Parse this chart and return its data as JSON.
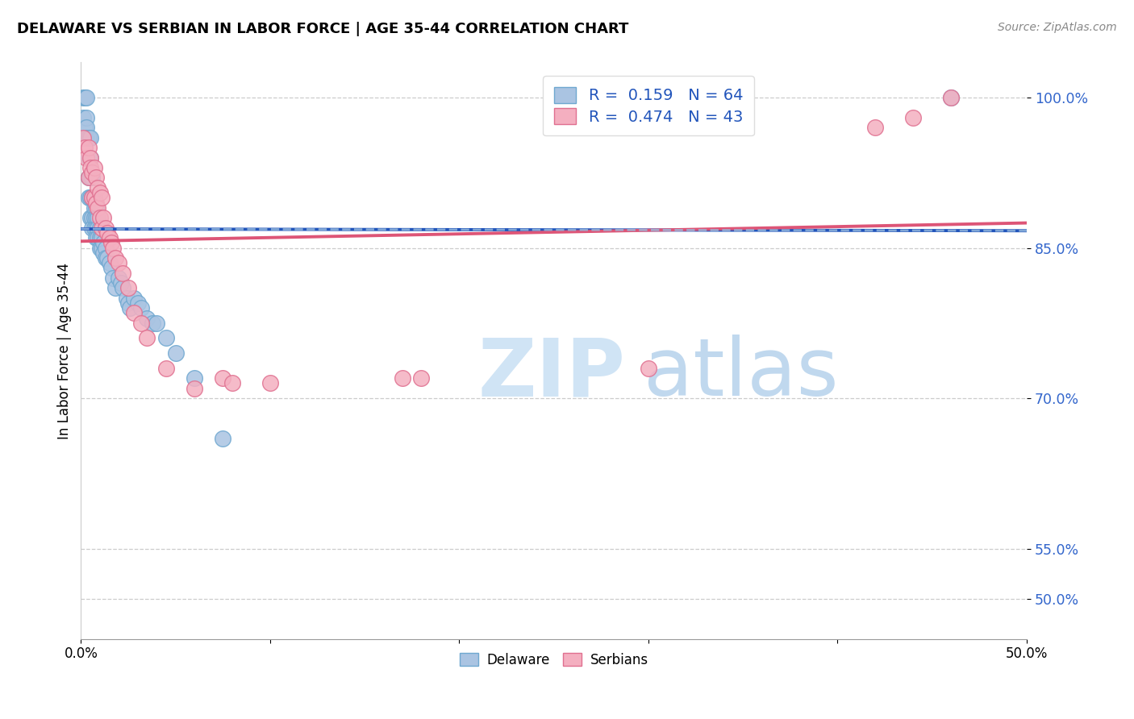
{
  "title": "DELAWARE VS SERBIAN IN LABOR FORCE | AGE 35-44 CORRELATION CHART",
  "source": "Source: ZipAtlas.com",
  "ylabel": "In Labor Force | Age 35-44",
  "xlim": [
    0.0,
    0.5
  ],
  "ylim": [
    0.46,
    1.035
  ],
  "yticks": [
    0.5,
    0.55,
    0.7,
    0.85,
    1.0
  ],
  "ytick_labels": [
    "50.0%",
    "55.0%",
    "70.0%",
    "85.0%",
    "100.0%"
  ],
  "xticks": [
    0.0,
    0.1,
    0.2,
    0.3,
    0.4,
    0.5
  ],
  "xtick_labels": [
    "0.0%",
    "",
    "",
    "",
    "",
    "50.0%"
  ],
  "R_delaware": 0.159,
  "N_delaware": 64,
  "R_serbian": 0.474,
  "N_serbian": 43,
  "delaware_color": "#aac4e2",
  "delaware_edge": "#6fa8d0",
  "serbian_color": "#f4afc0",
  "serbian_edge": "#e07090",
  "delaware_line_color": "#2255bb",
  "serbian_line_color": "#dd5577",
  "delaware_dash_color": "#99bbdd",
  "delaware_x": [
    0.001,
    0.001,
    0.002,
    0.002,
    0.002,
    0.003,
    0.003,
    0.003,
    0.003,
    0.004,
    0.004,
    0.004,
    0.004,
    0.005,
    0.005,
    0.005,
    0.005,
    0.005,
    0.006,
    0.006,
    0.006,
    0.006,
    0.007,
    0.007,
    0.007,
    0.007,
    0.008,
    0.008,
    0.008,
    0.008,
    0.009,
    0.009,
    0.009,
    0.01,
    0.01,
    0.01,
    0.011,
    0.011,
    0.012,
    0.012,
    0.013,
    0.013,
    0.014,
    0.015,
    0.016,
    0.017,
    0.018,
    0.02,
    0.021,
    0.022,
    0.024,
    0.025,
    0.026,
    0.028,
    0.03,
    0.032,
    0.035,
    0.038,
    0.04,
    0.045,
    0.05,
    0.06,
    0.075,
    0.46
  ],
  "delaware_y": [
    1.0,
    0.98,
    1.0,
    0.97,
    0.96,
    1.0,
    0.98,
    0.97,
    0.96,
    0.96,
    0.94,
    0.92,
    0.9,
    0.96,
    0.94,
    0.92,
    0.9,
    0.88,
    0.92,
    0.9,
    0.88,
    0.87,
    0.9,
    0.89,
    0.88,
    0.87,
    0.89,
    0.88,
    0.87,
    0.86,
    0.88,
    0.87,
    0.86,
    0.87,
    0.86,
    0.85,
    0.86,
    0.85,
    0.855,
    0.845,
    0.85,
    0.84,
    0.84,
    0.835,
    0.83,
    0.82,
    0.81,
    0.82,
    0.815,
    0.81,
    0.8,
    0.795,
    0.79,
    0.8,
    0.795,
    0.79,
    0.78,
    0.775,
    0.775,
    0.76,
    0.745,
    0.72,
    0.66,
    1.0
  ],
  "serbian_x": [
    0.001,
    0.002,
    0.003,
    0.004,
    0.004,
    0.005,
    0.005,
    0.006,
    0.006,
    0.007,
    0.007,
    0.008,
    0.008,
    0.009,
    0.009,
    0.01,
    0.01,
    0.011,
    0.011,
    0.012,
    0.013,
    0.014,
    0.015,
    0.016,
    0.017,
    0.018,
    0.02,
    0.022,
    0.025,
    0.028,
    0.032,
    0.035,
    0.045,
    0.06,
    0.075,
    0.08,
    0.1,
    0.17,
    0.18,
    0.3,
    0.42,
    0.44,
    0.46
  ],
  "serbian_y": [
    0.96,
    0.95,
    0.94,
    0.95,
    0.92,
    0.94,
    0.93,
    0.925,
    0.9,
    0.93,
    0.9,
    0.92,
    0.895,
    0.91,
    0.89,
    0.905,
    0.88,
    0.9,
    0.87,
    0.88,
    0.87,
    0.865,
    0.86,
    0.855,
    0.85,
    0.84,
    0.835,
    0.825,
    0.81,
    0.785,
    0.775,
    0.76,
    0.73,
    0.71,
    0.72,
    0.715,
    0.715,
    0.72,
    0.72,
    0.73,
    0.97,
    0.98,
    1.0
  ]
}
